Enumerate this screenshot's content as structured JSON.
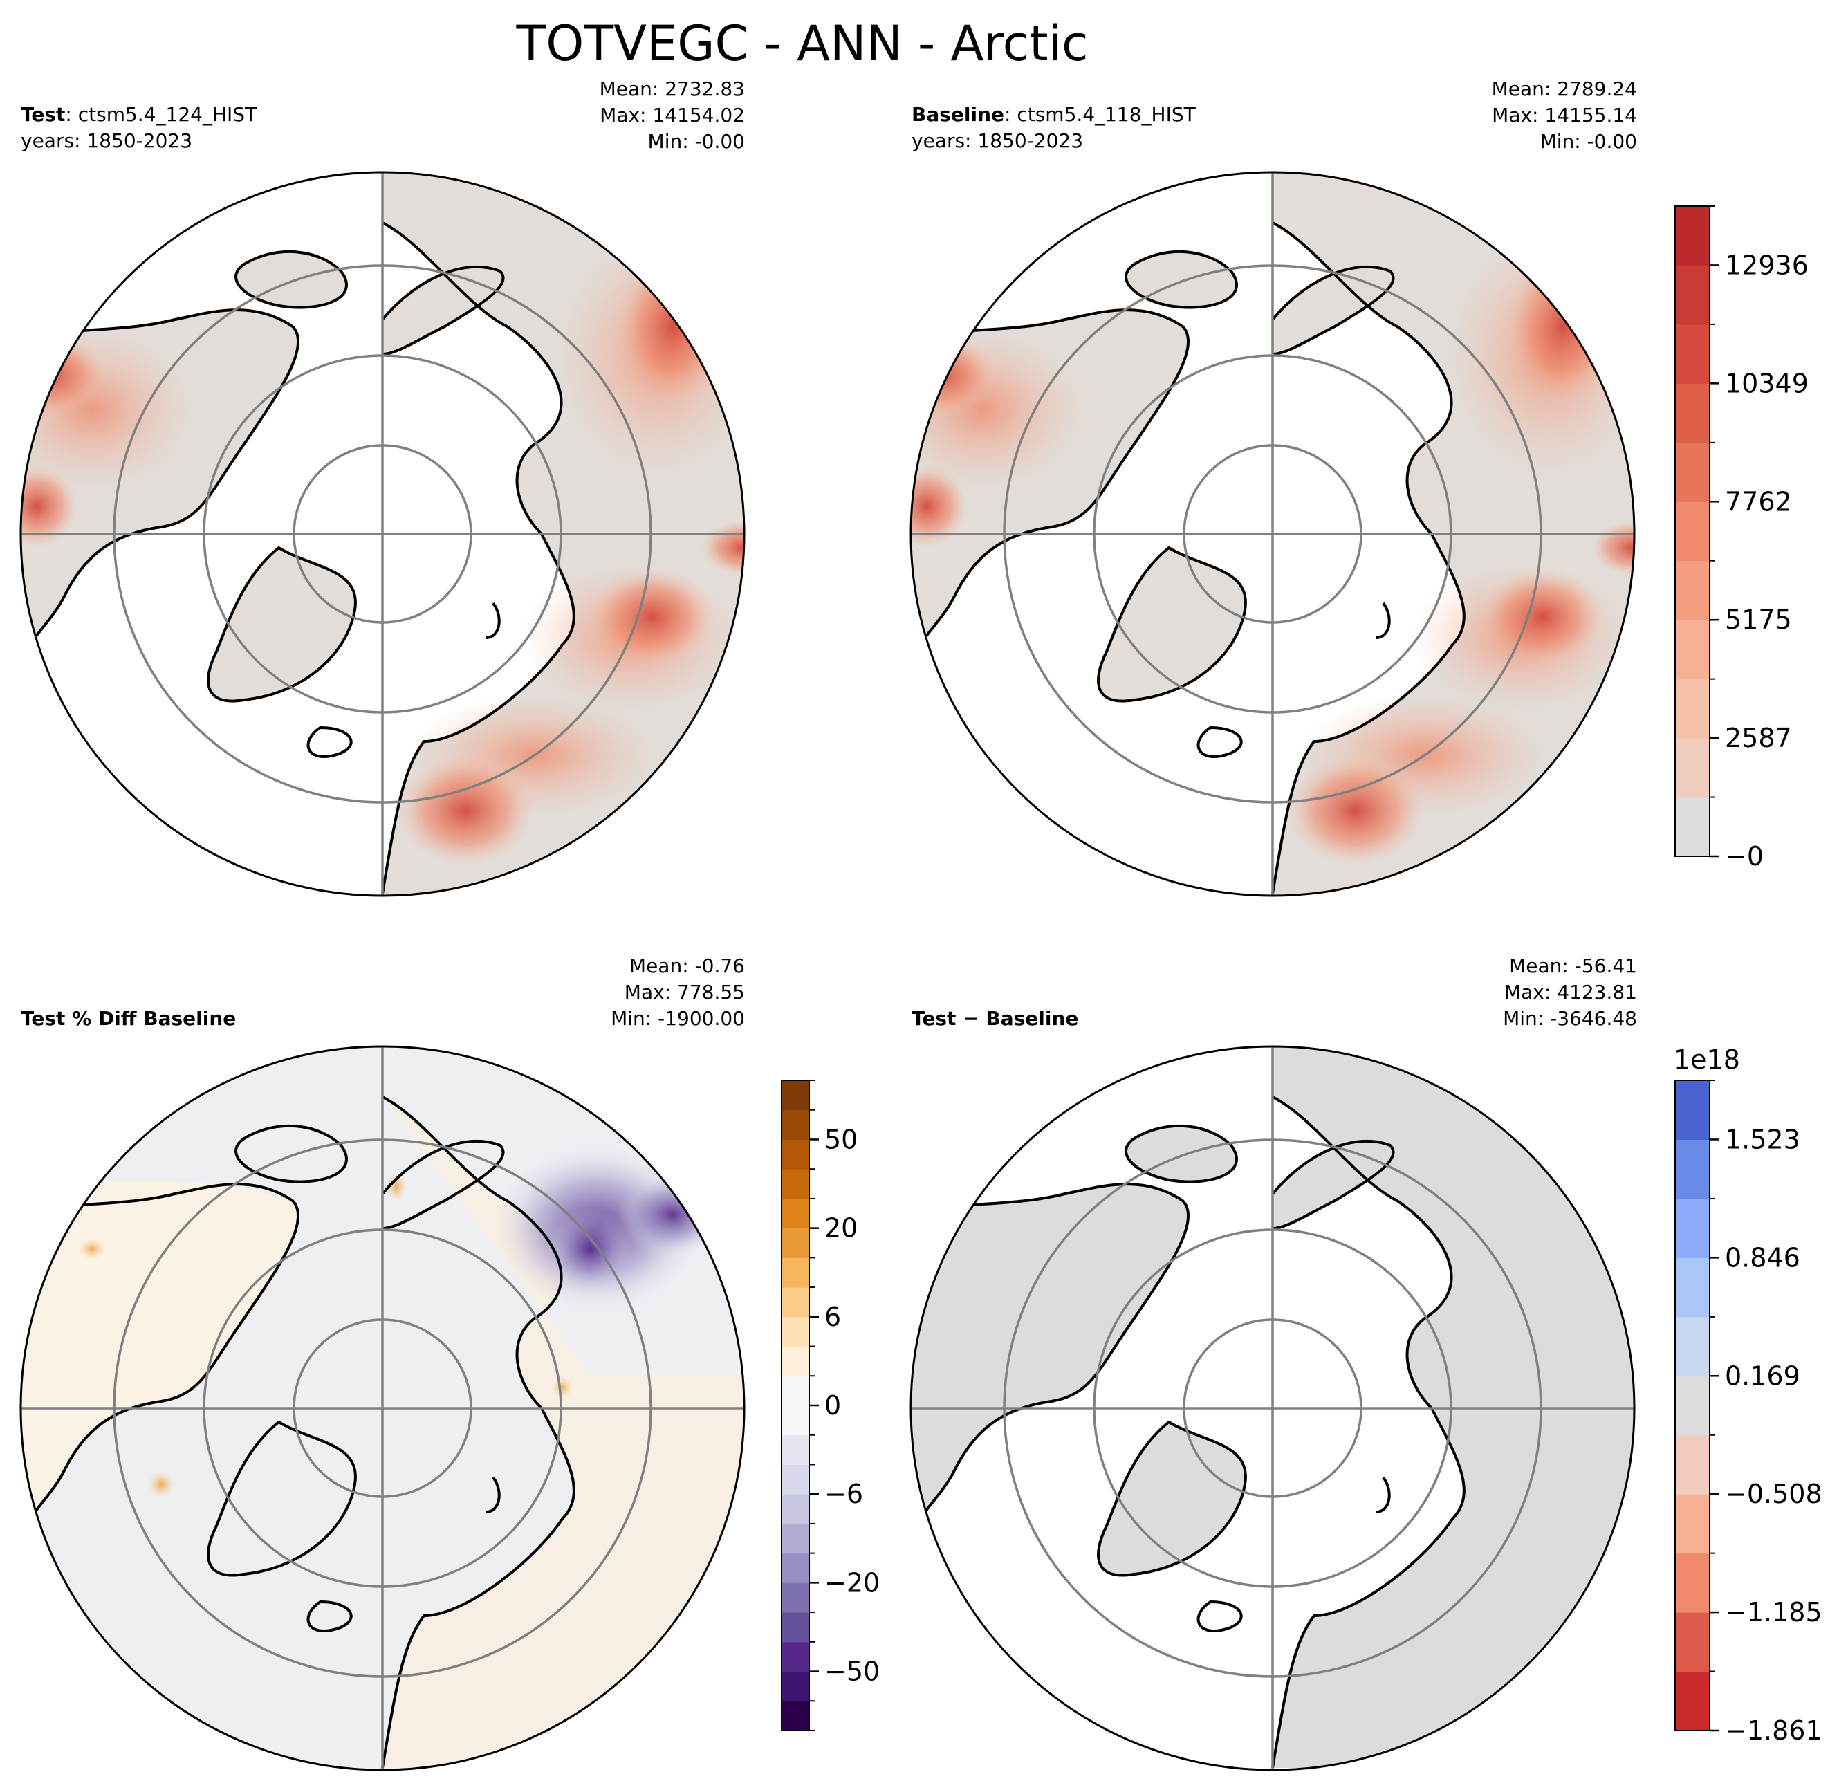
{
  "figure": {
    "title": "TOTVEGC - ANN - Arctic"
  },
  "panels": {
    "test": {
      "label_bold": "Test",
      "label_rest": ": ctsm5.4_124_HIST",
      "years": "years: 1850-2023",
      "stats": {
        "mean": "Mean: 2732.83",
        "max": "Max: 14154.02",
        "min": "Min: -0.00"
      }
    },
    "baseline": {
      "label_bold": "Baseline",
      "label_rest": ": ctsm5.4_118_HIST",
      "years": "years: 1850-2023",
      "stats": {
        "mean": "Mean: 2789.24",
        "max": "Max: 14155.14",
        "min": "Min: -0.00"
      }
    },
    "pct_diff": {
      "label": "Test % Diff Baseline",
      "stats": {
        "mean": "Mean: -0.76",
        "max": "Max: 778.55",
        "min": "Min: -1900.00"
      }
    },
    "abs_diff": {
      "label": "Test − Baseline",
      "stats": {
        "mean": "Mean: -56.41",
        "max": "Max: 4123.81",
        "min": "Min: -3646.48"
      }
    }
  },
  "colorbars": {
    "main": {
      "ticks": [
        "12936",
        "10349",
        "7762",
        "5175",
        "2587",
        "−0"
      ],
      "colors": [
        "#dcdcdc",
        "#f0cdbd",
        "#f3c0a8",
        "#f5b095",
        "#f49e80",
        "#ef8a6c",
        "#e87459",
        "#df6049",
        "#d44a3c",
        "#c93a32",
        "#bd2a2d"
      ]
    },
    "pct": {
      "ticks": [
        "50",
        "20",
        "6",
        "0",
        "−6",
        "−20",
        "−50"
      ],
      "colors_top": [
        "#7f3b08",
        "#9a4a07",
        "#b35806",
        "#c86a0c",
        "#dc8216",
        "#e99a38",
        "#f6b65f",
        "#fdcc8a",
        "#fee0b6",
        "#fdefd9",
        "#f7f7f7"
      ],
      "colors_bottom": [
        "#f7f7f7",
        "#e6e4ef",
        "#d8daeb",
        "#c7c7e1",
        "#b2abd2",
        "#998ec3",
        "#7e71ad",
        "#65519a",
        "#542788",
        "#3b1570",
        "#2d004b"
      ]
    },
    "abs": {
      "exponent": "1e18",
      "ticks": [
        "1.523",
        "0.846",
        "0.169",
        "−0.508",
        "−1.185",
        "−1.861"
      ],
      "colors": [
        "#cb2a2d",
        "#dd5b4a",
        "#ef8a6c",
        "#f6b195",
        "#f2cdbf",
        "#dcdcdc",
        "#c8d8f2",
        "#aac6f9",
        "#8caaf7",
        "#6a8ae8",
        "#4b63d0"
      ]
    }
  }
}
